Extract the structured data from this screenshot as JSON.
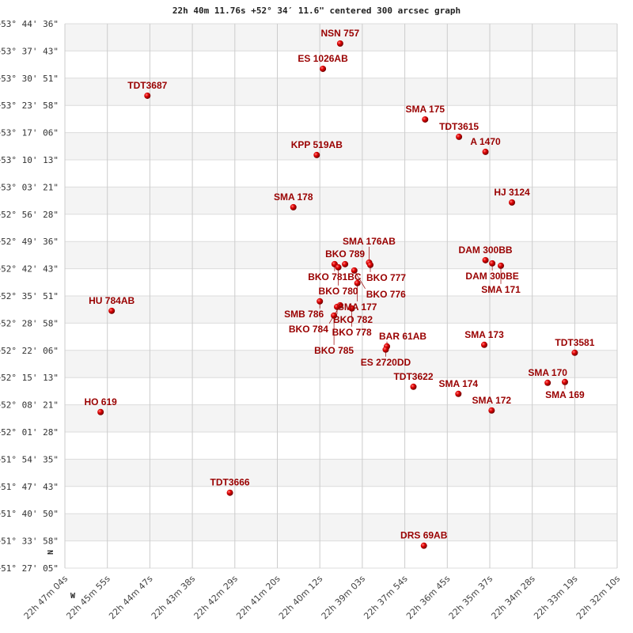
{
  "chart_data": {
    "type": "scatter",
    "title": "22h 40m 11.76s +52° 34′ 11.6\" centered 300 arcsec graph",
    "compass": {
      "north": "N",
      "west": "W"
    },
    "x_ticks": [
      "22h 47m 04s",
      "22h 45m 55s",
      "22h 44m 47s",
      "22h 43m 38s",
      "22h 42m 29s",
      "22h 41m 20s",
      "22h 40m 12s",
      "22h 39m 03s",
      "22h 37m 54s",
      "22h 36m 45s",
      "22h 35m 37s",
      "22h 34m 28s",
      "22h 33m 19s",
      "22h 32m 10s"
    ],
    "y_ticks": [
      "+53° 44' 36\"",
      "+53° 37' 43\"",
      "+53° 30' 51\"",
      "+53° 23' 58\"",
      "+53° 17' 06\"",
      "+53° 10' 13\"",
      "+53° 03' 21\"",
      "+52° 56' 28\"",
      "+52° 49' 36\"",
      "+52° 42' 43\"",
      "+52° 35' 51\"",
      "+52° 28' 58\"",
      "+52° 22' 06\"",
      "+52° 15' 13\"",
      "+52° 08' 21\"",
      "+52° 01' 28\"",
      "+51° 54' 35\"",
      "+51° 47' 43\"",
      "+51° 40' 50\"",
      "+51° 33' 58\"",
      "+51° 27' 05\""
    ],
    "x_range": [
      "22h 47m 04s",
      "22h 32m 10s"
    ],
    "y_range": [
      "+51° 27' 05\"",
      "+53° 44' 36\""
    ],
    "grid": true,
    "band_color": "#f4f4f4",
    "point_color": "#cc0000",
    "label_color": "#990000",
    "points": [
      {
        "label": "NSN 757",
        "ra": "22h39m37s",
        "dec": "+53°39'36\""
      },
      {
        "label": "ES 1026AB",
        "ra": "22h40m05s",
        "dec": "+53°33'12\""
      },
      {
        "label": "TDT3687",
        "ra": "22h44m50s",
        "dec": "+53°26'24\""
      },
      {
        "label": "SMA 175",
        "ra": "22h37m19s",
        "dec": "+53°20'24\""
      },
      {
        "label": "TDT3615",
        "ra": "22h36m24s",
        "dec": "+53°16'00\""
      },
      {
        "label": "A  1470",
        "ra": "22h35m41s",
        "dec": "+53°12'12\""
      },
      {
        "label": "KPP 519AB",
        "ra": "22h40m15s",
        "dec": "+53°11'24\""
      },
      {
        "label": "SMA 178",
        "ra": "22h40m53s",
        "dec": "+52°58'12\""
      },
      {
        "label": "HJ 3124",
        "ra": "22h34m58s",
        "dec": "+52°59'24\""
      },
      {
        "label": "BKO 789",
        "ra": "22h39m29s",
        "dec": "+52°43'48\""
      },
      {
        "label": "BKO 781BC",
        "ra": "22h39m46s",
        "dec": "+52°43'48\""
      },
      {
        "label": "BKO 780",
        "ra": "22h39m40s",
        "dec": "+52°43'00\""
      },
      {
        "label": "SMA 176AB",
        "ra": "22h38m50s",
        "dec": "+52°44'12\""
      },
      {
        "label": "BKO 777",
        "ra": "22h38m48s",
        "dec": "+52°43'36\""
      },
      {
        "label": "BKO 776",
        "ra": "22h39m14s",
        "dec": "+52°42'12\""
      },
      {
        "label": "DAM 300BB",
        "ra": "22h35m41s",
        "dec": "+52°44'48\""
      },
      {
        "label": "DAM 300BE",
        "ra": "22h35m30s",
        "dec": "+52°44'00\""
      },
      {
        "label": "SMA 171",
        "ra": "22h35m16s",
        "dec": "+52°43'24\""
      },
      {
        "label": "SMA 177",
        "ra": "22h39m09s",
        "dec": "+52°39'00\""
      },
      {
        "label": "SMB 786",
        "ra": "22h40m10s",
        "dec": "+52°34'24\""
      },
      {
        "label": "BKO 782",
        "ra": "22h39m42s",
        "dec": "+52°33'00\""
      },
      {
        "label": "BKO 784",
        "ra": "22h39m37s",
        "dec": "+52°33'24\""
      },
      {
        "label": "BKO 778",
        "ra": "22h39m18s",
        "dec": "+52°32'36\""
      },
      {
        "label": "BKO 785",
        "ra": "22h39m47s",
        "dec": "+52°30'48\""
      },
      {
        "label": "HU  784AB",
        "ra": "22h45m48s",
        "dec": "+52°32'00\""
      },
      {
        "label": "BAR 61AB",
        "ra": "22h38m21s",
        "dec": "+52°23'00\""
      },
      {
        "label": "ES 2720DD",
        "ra": "22h38m23s",
        "dec": "+52°22'12\""
      },
      {
        "label": "SMA 173",
        "ra": "22h35m43s",
        "dec": "+52°23'24\""
      },
      {
        "label": "TDT3581",
        "ra": "22h33m16s",
        "dec": "+52°21'24\""
      },
      {
        "label": "TDT3622",
        "ra": "22h37m38s",
        "dec": "+52°12'48\""
      },
      {
        "label": "SMA 174",
        "ra": "22h36m25s",
        "dec": "+52°11'00\""
      },
      {
        "label": "SMA 170",
        "ra": "22h34m00s",
        "dec": "+52°13'48\""
      },
      {
        "label": "SMA 169",
        "ra": "22h33m32s",
        "dec": "+52°14'00\""
      },
      {
        "label": "SMA 172",
        "ra": "22h35m31s",
        "dec": "+52°06'48\""
      },
      {
        "label": "HO  619",
        "ra": "22h46m06s",
        "dec": "+52°06'24\""
      },
      {
        "label": "TDT3666",
        "ra": "22h42m36s",
        "dec": "+51°46'00\""
      },
      {
        "label": "DRS  69AB",
        "ra": "22h37m21s",
        "dec": "+51°32'36\""
      }
    ]
  }
}
